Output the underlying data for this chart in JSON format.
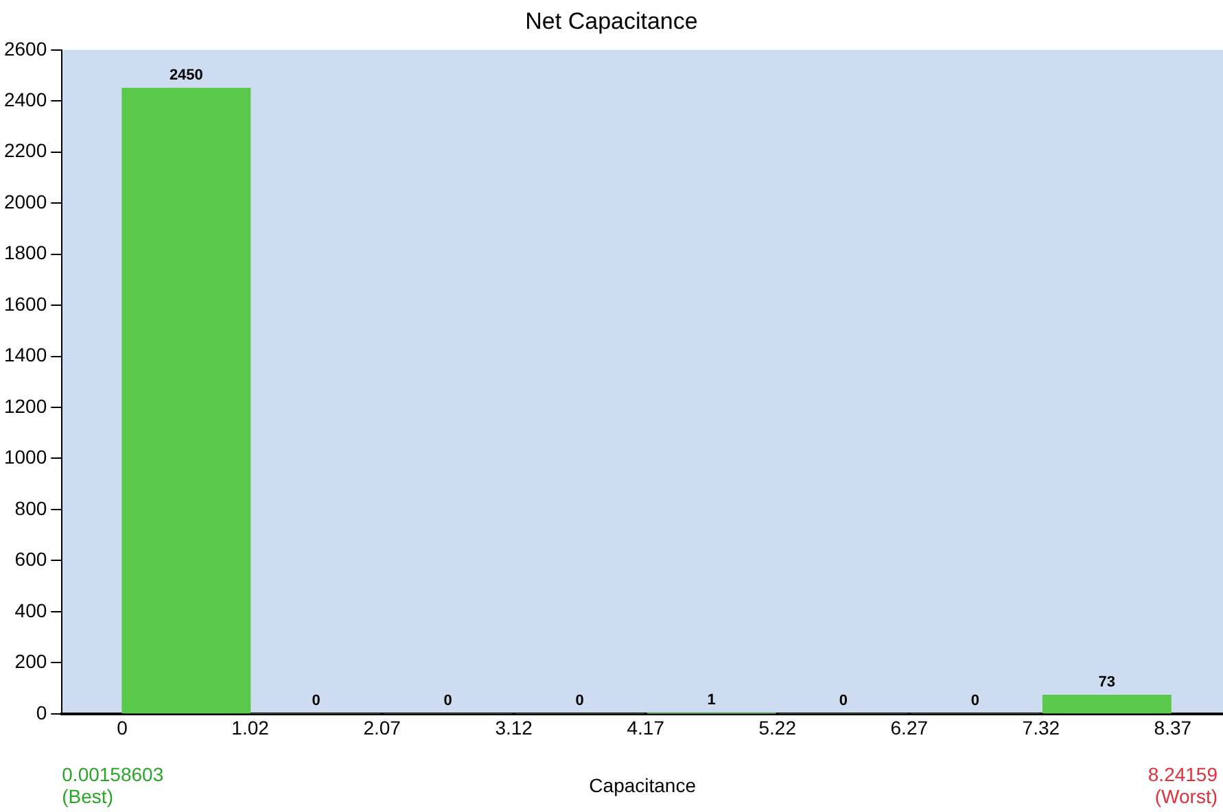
{
  "chart_data": {
    "type": "histogram",
    "title": "Net Capacitance",
    "xlabel": "Capacitance",
    "bins": [
      0,
      1.02,
      2.07,
      3.12,
      4.17,
      5.22,
      6.27,
      7.32,
      8.37
    ],
    "values": [
      2450,
      0,
      0,
      0,
      1,
      0,
      0,
      73
    ],
    "color": "#5ac84a",
    "xlim": [
      -0.48,
      8.77
    ],
    "xticks": [
      0,
      1.02,
      2.07,
      3.12,
      4.17,
      5.22,
      6.27,
      7.32,
      8.37
    ],
    "ylim": [
      0,
      2600
    ],
    "yticks": [
      0,
      200,
      400,
      600,
      800,
      1000,
      1200,
      1400,
      1600,
      1800,
      2000,
      2200,
      2400,
      2600
    ],
    "grid": false,
    "legend": false,
    "data_labels": true,
    "annotations": [
      "0.00158603\n(Best)",
      "8.24159\n(Worst)"
    ]
  }
}
